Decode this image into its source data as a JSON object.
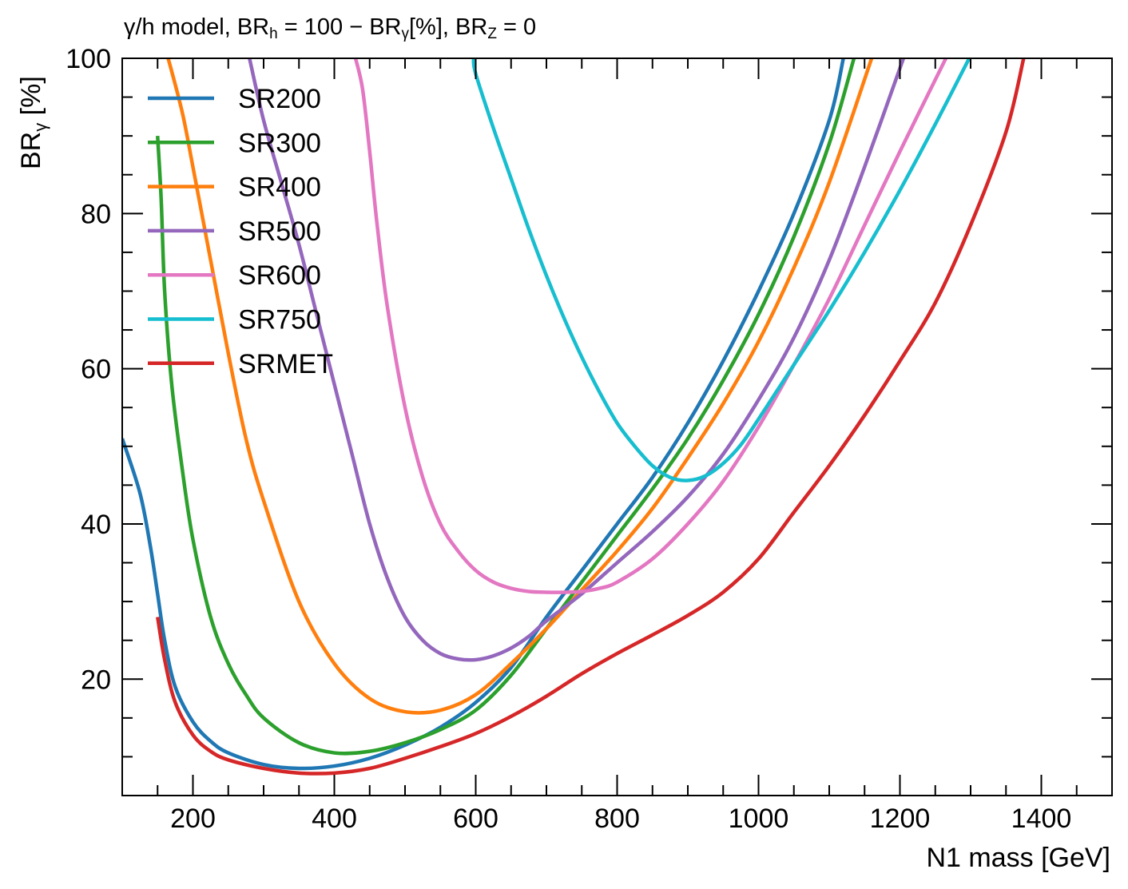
{
  "chart_data": {
    "type": "line",
    "title": {
      "prefix": "γ/h model, BR",
      "sub1": "h",
      "mid": " = 100 − BR",
      "sub2": "γ",
      "mid2": "[%], BR",
      "sub3": "Z",
      "suffix": " = 0"
    },
    "xlabel": "N1 mass [GeV]",
    "ylabel": "BRγ [%]",
    "ylabel_main": "BR",
    "ylabel_sub": "γ",
    "ylabel_unit": " [%]",
    "xlim": [
      100,
      1500
    ],
    "ylim": [
      5,
      100
    ],
    "xticks": [
      200,
      400,
      600,
      800,
      1000,
      1200,
      1400
    ],
    "yticks": [
      20,
      40,
      60,
      80,
      100
    ],
    "xtick_labels": [
      "200",
      "400",
      "600",
      "800",
      "1000",
      "1200",
      "1400"
    ],
    "ytick_labels": [
      "20",
      "40",
      "60",
      "80",
      "100"
    ],
    "legend_position": "upper-left",
    "grid": false,
    "series": [
      {
        "name": "SR200",
        "color": "#1f77b4",
        "x": [
          100,
          125,
          140,
          150,
          160,
          175,
          200,
          225,
          250,
          300,
          350,
          400,
          450,
          500,
          550,
          600,
          650,
          700,
          750,
          800,
          850,
          900,
          950,
          1000,
          1050,
          1100,
          1120
        ],
        "y": [
          51,
          44,
          37,
          31,
          25,
          19,
          14.5,
          12,
          10.5,
          9,
          8.5,
          8.8,
          9.8,
          11.5,
          13.8,
          17,
          21.5,
          28,
          34,
          40,
          46,
          53,
          61,
          70,
          80,
          92,
          100
        ]
      },
      {
        "name": "SR300",
        "color": "#2ca02c",
        "x": [
          150,
          155,
          160,
          170,
          185,
          200,
          225,
          250,
          275,
          300,
          350,
          400,
          450,
          500,
          550,
          600,
          650,
          700,
          750,
          800,
          850,
          900,
          950,
          1000,
          1050,
          1100,
          1135
        ],
        "y": [
          90,
          82,
          70,
          58,
          47,
          38,
          28,
          22,
          18,
          15,
          11.8,
          10.5,
          10.7,
          11.8,
          13.5,
          16,
          20.5,
          26.5,
          32.5,
          38.5,
          44.5,
          51,
          58.5,
          67,
          77,
          89,
          100
        ]
      },
      {
        "name": "SR400",
        "color": "#ff7f0e",
        "x": [
          165,
          185,
          200,
          225,
          250,
          275,
          300,
          350,
          400,
          450,
          500,
          550,
          600,
          650,
          700,
          750,
          800,
          850,
          900,
          950,
          1000,
          1050,
          1100,
          1160
        ],
        "y": [
          100,
          93,
          86,
          74,
          62,
          51,
          43,
          30,
          22,
          17.5,
          15.8,
          16,
          18,
          22,
          26.5,
          31.5,
          36.5,
          42,
          48.5,
          55.5,
          63.5,
          73,
          84,
          100
        ]
      },
      {
        "name": "SR500",
        "color": "#9467bd",
        "x": [
          280,
          300,
          325,
          350,
          375,
          400,
          425,
          450,
          475,
          500,
          525,
          550,
          575,
          600,
          625,
          650,
          675,
          700,
          750,
          800,
          850,
          900,
          950,
          1000,
          1050,
          1100,
          1150,
          1205
        ],
        "y": [
          100,
          92,
          84,
          76,
          67,
          58,
          49,
          40,
          33,
          28,
          25,
          23.3,
          22.6,
          22.5,
          23,
          24,
          25.5,
          27.5,
          31,
          35,
          39,
          43.5,
          49,
          56,
          64,
          74,
          86,
          100
        ]
      },
      {
        "name": "SR600",
        "color": "#e377c2",
        "x": [
          430,
          440,
          450,
          460,
          475,
          500,
          525,
          550,
          575,
          600,
          625,
          650,
          675,
          700,
          725,
          750,
          775,
          800,
          850,
          900,
          950,
          1000,
          1050,
          1100,
          1150,
          1200,
          1265
        ],
        "y": [
          100,
          96,
          88,
          79,
          68,
          55,
          46,
          40,
          36.5,
          34,
          32.5,
          31.7,
          31.3,
          31.2,
          31.2,
          31.3,
          31.7,
          32.5,
          35.5,
          40,
          45.5,
          52.5,
          60.5,
          69,
          78.5,
          88,
          100
        ]
      },
      {
        "name": "SR750",
        "color": "#17becf",
        "x": [
          597,
          600,
          625,
          650,
          675,
          700,
          725,
          750,
          775,
          800,
          825,
          850,
          875,
          900,
          925,
          950,
          975,
          1000,
          1050,
          1100,
          1150,
          1200,
          1250,
          1298
        ],
        "y": [
          100,
          98,
          91,
          84.5,
          78,
          72,
          66.5,
          61.5,
          57,
          53,
          50,
          47.5,
          46,
          45.6,
          46.2,
          47.8,
          50.2,
          53.5,
          60.5,
          67.5,
          75,
          83,
          91.5,
          100
        ]
      },
      {
        "name": "SRMET",
        "color": "#d62728",
        "x": [
          150,
          160,
          175,
          200,
          225,
          250,
          300,
          350,
          400,
          450,
          500,
          550,
          600,
          650,
          700,
          750,
          800,
          850,
          900,
          950,
          1000,
          1050,
          1100,
          1150,
          1200,
          1250,
          1300,
          1350,
          1375
        ],
        "y": [
          28,
          22.5,
          17,
          12.8,
          10.7,
          9.6,
          8.5,
          7.9,
          7.9,
          8.5,
          9.8,
          11.3,
          13,
          15.2,
          17.8,
          20.7,
          23.3,
          25.7,
          28.2,
          31.2,
          35.5,
          41.5,
          47.5,
          54,
          61,
          68.5,
          78.5,
          90.5,
          100
        ]
      }
    ]
  }
}
